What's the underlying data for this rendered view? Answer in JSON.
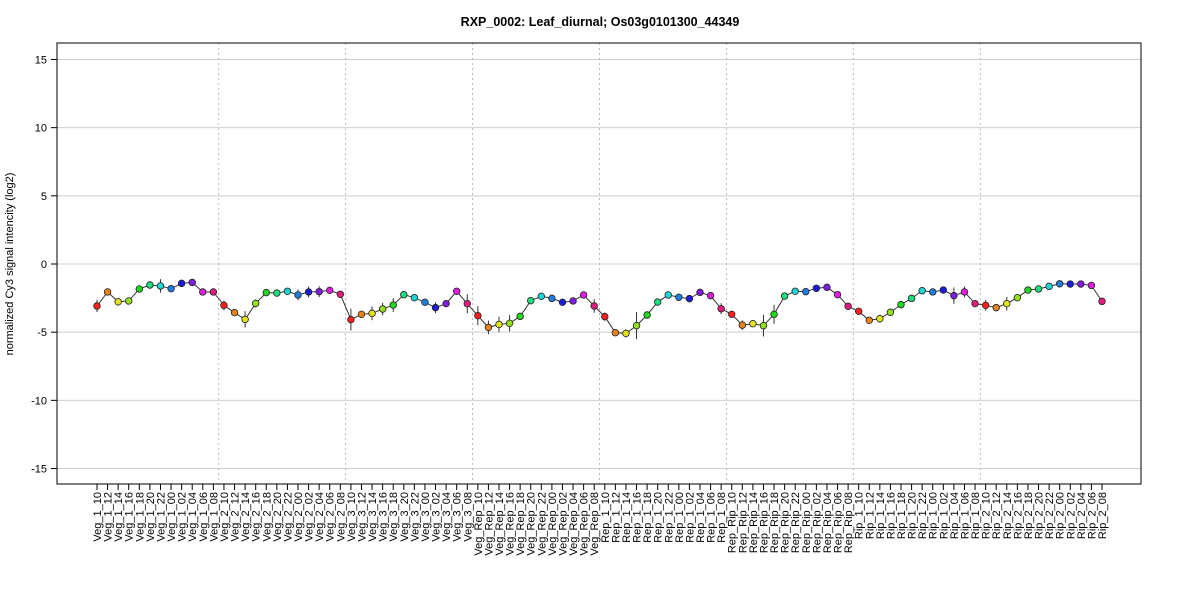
{
  "chart_data": {
    "type": "line",
    "title": "RXP_0002: Leaf_diurnal; Os03g0101300_44349",
    "xlabel": "",
    "ylabel": "normalized Cy3 signal intencity (log2)",
    "ylim": [
      -16,
      16
    ],
    "yticks": [
      -15,
      -10,
      -5,
      0,
      5,
      10,
      15
    ],
    "grid": "horizontal",
    "groups": [
      "Veg_1",
      "Veg_2",
      "Veg_3",
      "Veg_Rep",
      "Rep_1",
      "Rep_Rip",
      "Rip_1",
      "Rip_2"
    ],
    "times": [
      "10",
      "12",
      "14",
      "16",
      "18",
      "20",
      "22",
      "00",
      "02",
      "04",
      "06",
      "08"
    ],
    "time_colors": [
      "#ff1f1f",
      "#e8821c",
      "#e2e21c",
      "#94e01c",
      "#1ed81e",
      "#1cdc7e",
      "#1cd6d6",
      "#1e7ee0",
      "#1c1ce0",
      "#7e1ce0",
      "#e01ce0",
      "#e01c7e"
    ],
    "values": [
      -3.08,
      -2.05,
      -2.77,
      -2.71,
      -1.83,
      -1.54,
      -1.61,
      -1.81,
      -1.42,
      -1.35,
      -2.05,
      -2.05,
      -3.03,
      -3.57,
      -4.06,
      -2.89,
      -2.1,
      -2.13,
      -2.0,
      -2.27,
      -2.05,
      -2.03,
      -1.93,
      -2.22,
      -4.08,
      -3.69,
      -3.62,
      -3.3,
      -3.01,
      -2.25,
      -2.47,
      -2.81,
      -3.2,
      -2.91,
      -2.0,
      -2.91,
      -3.79,
      -4.65,
      -4.43,
      -4.35,
      -3.84,
      -2.69,
      -2.37,
      -2.52,
      -2.81,
      -2.71,
      -2.27,
      -3.08,
      -3.86,
      -5.04,
      -5.09,
      -4.52,
      -3.74,
      -2.79,
      -2.27,
      -2.44,
      -2.54,
      -2.08,
      -2.32,
      -3.28,
      -3.69,
      -4.48,
      -4.38,
      -4.52,
      -3.69,
      -2.35,
      -2.0,
      -2.03,
      -1.78,
      -1.71,
      -2.25,
      -3.1,
      -3.47,
      -4.13,
      -4.01,
      -3.54,
      -2.98,
      -2.52,
      -1.96,
      -2.05,
      -1.91,
      -2.32,
      -2.05,
      -2.91,
      -3.03,
      -3.2,
      -2.91,
      -2.47,
      -1.91,
      -1.83,
      -1.64,
      -1.45,
      -1.47,
      -1.47,
      -1.57,
      -2.74
    ],
    "errors": [
      0.45,
      0.15,
      0.15,
      0.15,
      0.1,
      0.1,
      0.5,
      0.1,
      0.1,
      0.1,
      0.1,
      0.15,
      0.35,
      0.2,
      0.6,
      0.3,
      0.1,
      0.1,
      0.1,
      0.4,
      0.4,
      0.4,
      0.1,
      0.2,
      0.8,
      0.15,
      0.5,
      0.45,
      0.5,
      0.1,
      0.1,
      0.2,
      0.4,
      0.1,
      0.1,
      0.7,
      0.7,
      0.5,
      0.55,
      0.6,
      0.2,
      0.1,
      0.1,
      0.1,
      0.1,
      0.1,
      0.1,
      0.5,
      0.3,
      0.15,
      0.3,
      1.0,
      0.15,
      0.1,
      0.1,
      0.1,
      0.1,
      0.1,
      0.1,
      0.4,
      0.2,
      0.35,
      0.1,
      0.8,
      0.7,
      0.1,
      0.1,
      0.1,
      0.1,
      0.1,
      0.1,
      0.15,
      0.15,
      0.1,
      0.3,
      0.1,
      0.1,
      0.1,
      0.15,
      0.1,
      0.15,
      0.6,
      0.4,
      0.1,
      0.4,
      0.2,
      0.5,
      0.1,
      0.1,
      0.1,
      0.1,
      0.1,
      0.1,
      0.1,
      0.1,
      0.1
    ]
  }
}
